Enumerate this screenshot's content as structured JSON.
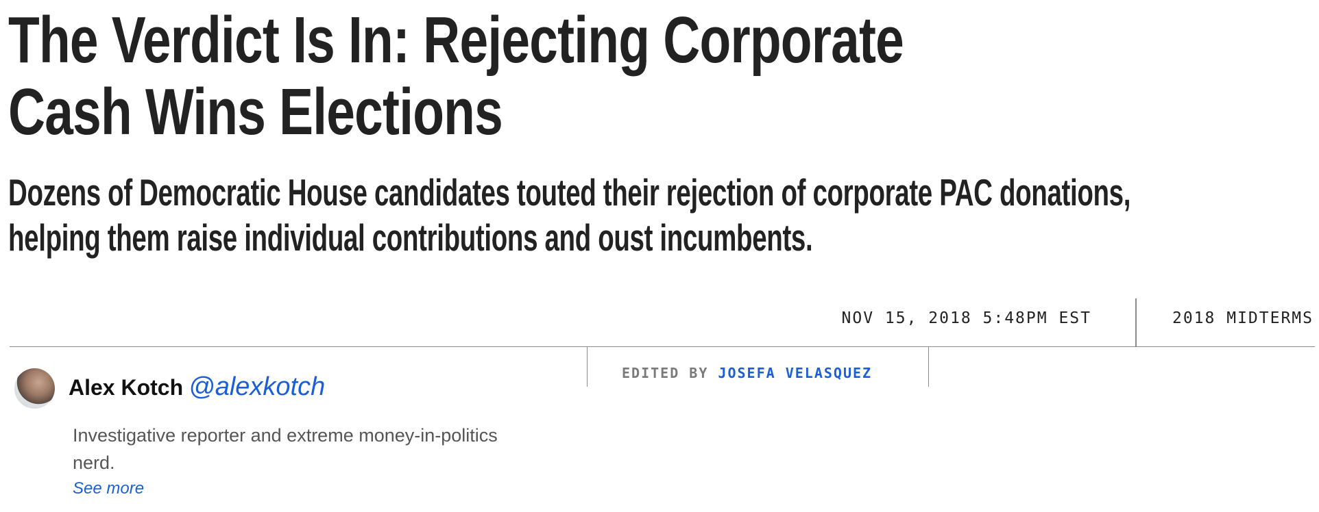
{
  "article": {
    "headline": "The Verdict Is In: Rejecting Corporate Cash Wins Elections",
    "subheadline": "Dozens of Democratic House candidates touted their rejection of corporate PAC donations, helping them raise individual contributions and oust incumbents."
  },
  "meta": {
    "date": "NOV 15, 2018 5:48PM EST",
    "tag": "2018 MIDTERMS"
  },
  "editor": {
    "label": "EDITED BY",
    "name": "JOSEFA VELASQUEZ"
  },
  "author": {
    "name": "Alex Kotch",
    "handle": "@alexkotch",
    "bio": "Investigative reporter and extreme money-in-politics nerd.",
    "see_more": "See more"
  },
  "colors": {
    "text": "#222222",
    "link": "#1a5fd8",
    "muted": "#7a7a7a",
    "rule": "#8a8a8a"
  }
}
